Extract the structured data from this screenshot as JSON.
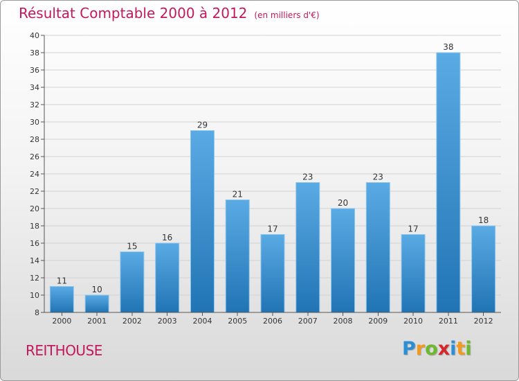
{
  "title": "Résultat Comptable 2000 à 2012",
  "subtitle": "(en milliers d'€)",
  "commune": "REITHOUSE",
  "logo": {
    "letters": [
      "P",
      "r",
      "o",
      "x",
      "i",
      "t",
      "i"
    ],
    "colors": [
      "#2a8fd6",
      "#f39a1e",
      "#6cba2c",
      "#d6262b",
      "#2a8fd6",
      "#f39a1e",
      "#6cba2c"
    ]
  },
  "colors": {
    "bar_top": "#5aaae4",
    "bar_bottom": "#2174b4",
    "accent": "#c3185c"
  },
  "chart_data": {
    "type": "bar",
    "categories": [
      "2000",
      "2001",
      "2002",
      "2003",
      "2004",
      "2005",
      "2006",
      "2007",
      "2008",
      "2009",
      "2010",
      "2011",
      "2012"
    ],
    "values": [
      11,
      10,
      15,
      16,
      29,
      21,
      17,
      23,
      20,
      23,
      17,
      38,
      18
    ],
    "ylim": [
      8,
      40
    ],
    "yticks": [
      8,
      10,
      12,
      14,
      16,
      18,
      20,
      22,
      24,
      26,
      28,
      30,
      32,
      34,
      36,
      38,
      40
    ],
    "grid": true,
    "data_labels": true
  }
}
